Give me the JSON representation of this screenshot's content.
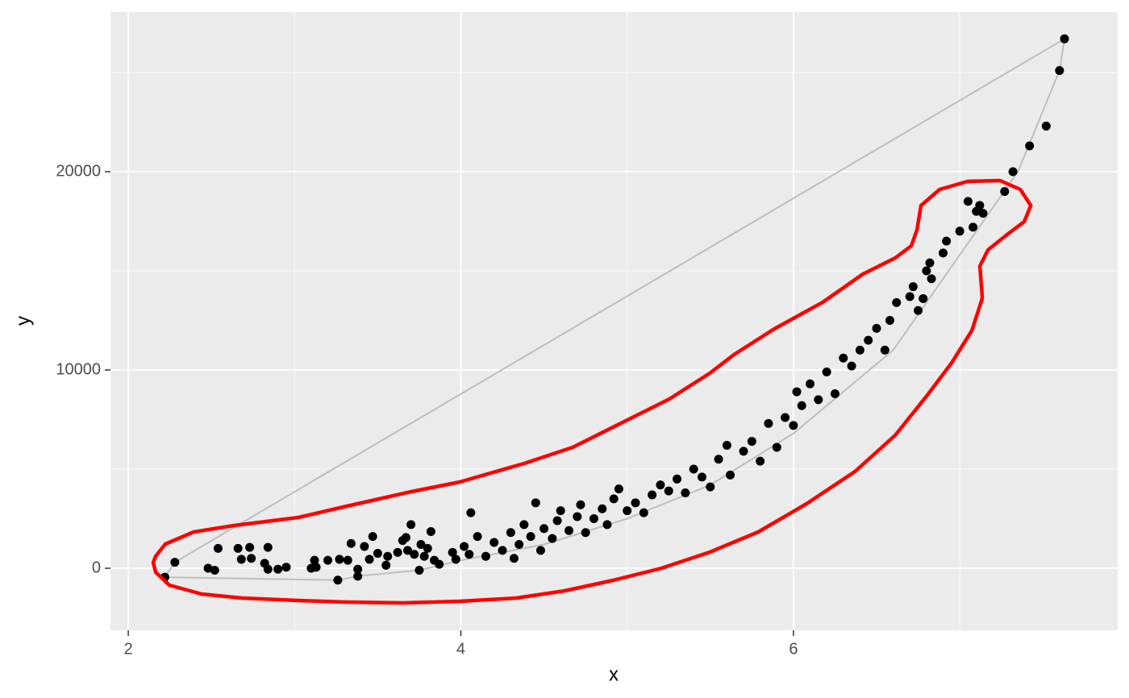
{
  "chart_data": {
    "type": "scatter",
    "x_label": "x",
    "y_label": "y",
    "xlim": [
      1.893,
      7.95
    ],
    "ylim": [
      -3130,
      28049
    ],
    "xticks": [
      2,
      4,
      6
    ],
    "yticks": [
      0,
      10000,
      20000
    ],
    "xminor": [
      3,
      5,
      7
    ],
    "yminor": [
      5000,
      15000,
      25000
    ],
    "grid": true,
    "color": "#000000",
    "x": [
      2.22,
      2.28,
      2.48,
      2.52,
      2.54,
      2.66,
      2.68,
      2.73,
      2.74,
      2.82,
      2.84,
      2.84,
      2.9,
      2.95,
      3.1,
      3.12,
      3.13,
      3.2,
      3.26,
      3.27,
      3.32,
      3.34,
      3.38,
      3.38,
      3.42,
      3.45,
      3.47,
      3.5,
      3.55,
      3.56,
      3.62,
      3.65,
      3.67,
      3.68,
      3.7,
      3.72,
      3.75,
      3.76,
      3.78,
      3.8,
      3.82,
      3.84,
      3.87,
      3.95,
      3.97,
      4.02,
      4.05,
      4.06,
      4.1,
      4.15,
      4.2,
      4.25,
      4.3,
      4.32,
      4.35,
      4.38,
      4.42,
      4.45,
      4.48,
      4.5,
      4.55,
      4.58,
      4.6,
      4.65,
      4.7,
      4.72,
      4.75,
      4.8,
      4.85,
      4.88,
      4.92,
      4.95,
      5.0,
      5.05,
      5.1,
      5.15,
      5.2,
      5.25,
      5.3,
      5.35,
      5.4,
      5.45,
      5.5,
      5.55,
      5.6,
      5.62,
      5.7,
      5.75,
      5.8,
      5.85,
      5.9,
      5.95,
      6.0,
      6.02,
      6.05,
      6.1,
      6.15,
      6.2,
      6.25,
      6.3,
      6.35,
      6.4,
      6.45,
      6.5,
      6.55,
      6.58,
      6.62,
      6.7,
      6.72,
      6.75,
      6.78,
      6.8,
      6.82,
      6.83,
      6.9,
      6.92,
      7.0,
      7.05,
      7.08,
      7.1,
      7.12,
      7.14,
      7.27,
      7.32,
      7.42,
      7.52,
      7.6,
      7.63
    ],
    "y": [
      -450,
      300,
      0,
      -100,
      1000,
      1000,
      450,
      1050,
      500,
      250,
      1050,
      -50,
      -50,
      50,
      0,
      400,
      50,
      400,
      -600,
      450,
      400,
      1250,
      -50,
      -400,
      1100,
      450,
      1600,
      750,
      150,
      600,
      800,
      1400,
      1550,
      900,
      2200,
      700,
      -100,
      1200,
      600,
      1000,
      1850,
      400,
      200,
      800,
      450,
      1100,
      700,
      2800,
      1600,
      600,
      1300,
      900,
      1800,
      500,
      1200,
      2200,
      1600,
      3300,
      900,
      2000,
      1500,
      2400,
      2900,
      1900,
      2600,
      3200,
      1800,
      2500,
      3000,
      2200,
      3500,
      4000,
      2900,
      3300,
      2800,
      3700,
      4200,
      3900,
      4500,
      3800,
      5000,
      4600,
      4100,
      5500,
      6200,
      4700,
      5900,
      6400,
      5400,
      7300,
      6100,
      7600,
      7200,
      8900,
      8200,
      9300,
      8500,
      9900,
      8800,
      10600,
      10200,
      11000,
      11500,
      12100,
      11000,
      12500,
      13400,
      13700,
      14200,
      13000,
      13600,
      15000,
      15400,
      14600,
      15900,
      16500,
      17000,
      18500,
      17200,
      18000,
      18300,
      17900,
      19000,
      20000,
      21300,
      22300,
      25100,
      26700
    ],
    "hull": {
      "color": "#bebebe",
      "x": [
        2.22,
        2.28,
        7.63,
        7.6,
        7.35,
        7.1,
        6.6,
        6.0,
        5.5,
        5.0,
        4.5,
        4.0,
        3.75,
        3.38,
        3.26
      ],
      "y": [
        -450,
        300,
        26700,
        25100,
        20000,
        17000,
        11000,
        6800,
        4200,
        2500,
        1200,
        400,
        -100,
        -400,
        -600
      ]
    },
    "contour": {
      "color": "#ff0000",
      "x": [
        2.165,
        2.223,
        2.393,
        2.635,
        3.023,
        3.314,
        3.702,
        3.993,
        4.381,
        4.672,
        4.963,
        5.254,
        5.497,
        5.642,
        5.885,
        6.176,
        6.418,
        6.612,
        6.709,
        6.743,
        6.767,
        6.879,
        7.048,
        7.242,
        7.364,
        7.427,
        7.388,
        7.291,
        7.17,
        7.121,
        7.136,
        7.073,
        6.952,
        6.806,
        6.612,
        6.37,
        6.079,
        5.788,
        5.497,
        5.206,
        4.915,
        4.624,
        4.333,
        3.993,
        3.654,
        3.314,
        3.023,
        2.684,
        2.441,
        2.247,
        2.165,
        2.15
      ],
      "y": [
        610,
        1220,
        1829,
        2154,
        2561,
        3130,
        3862,
        4350,
        5285,
        6098,
        7317,
        8537,
        9837,
        10772,
        12073,
        13415,
        14837,
        15650,
        16260,
        17073,
        18293,
        19106,
        19512,
        19553,
        19106,
        18293,
        17480,
        16870,
        16057,
        15244,
        13618,
        11992,
        10366,
        8740,
        6707,
        4878,
        3252,
        1829,
        813,
        0,
        -610,
        -1138,
        -1504,
        -1667,
        -1748,
        -1707,
        -1626,
        -1504,
        -1301,
        -854,
        -203,
        285
      ]
    }
  }
}
